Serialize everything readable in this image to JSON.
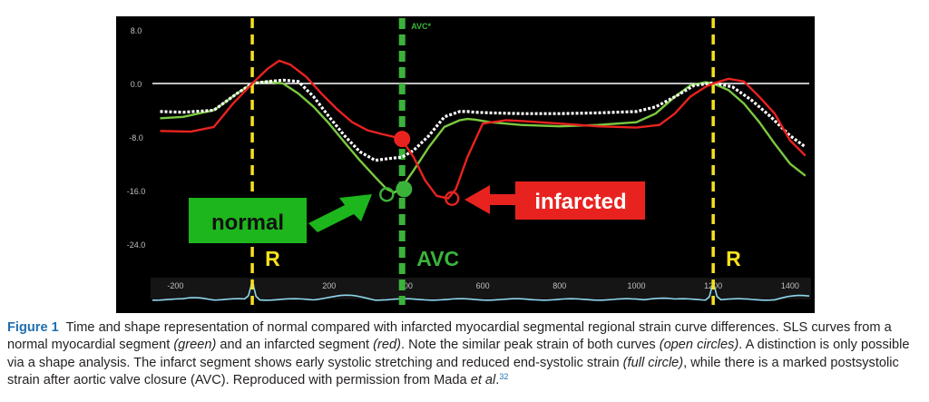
{
  "chart_data": {
    "type": "line",
    "y_ticks": [
      "8.0",
      "0.0",
      "-8.0",
      "-16.0",
      "-24.0"
    ],
    "ylim": [
      -28.5,
      9.5
    ],
    "ecg_x_ticks": [
      "-200",
      "0",
      "200",
      "400",
      "600",
      "800",
      "1000",
      "1200",
      "1400"
    ],
    "xlim": [
      -260,
      1450
    ],
    "markers": [
      {
        "label": "R",
        "x": 0,
        "color": "#f5e11e"
      },
      {
        "label": "AVC",
        "x": 390,
        "color": "#3bb33b"
      },
      {
        "label": "R",
        "x": 1200,
        "color": "#f5e11e"
      }
    ],
    "avc_top_label": "AVC*",
    "series": [
      {
        "color": "#7bc940",
        "x": [
          -240,
          -180,
          -100,
          -40,
          0,
          40,
          80,
          120,
          160,
          200,
          240,
          280,
          320,
          350,
          370,
          390,
          420,
          460,
          500,
          540,
          560,
          580,
          620,
          700,
          800,
          900,
          1000,
          1050,
          1100,
          1140,
          1180,
          1200,
          1240,
          1280,
          1320,
          1360,
          1400,
          1440
        ],
        "y": [
          -5.2,
          -5.0,
          -4.0,
          -1.5,
          0.0,
          0.3,
          0.0,
          -1.5,
          -3.5,
          -6.0,
          -8.8,
          -11.5,
          -14.0,
          -15.8,
          -16.3,
          -15.5,
          -13.0,
          -9.5,
          -6.5,
          -5.5,
          -5.3,
          -5.4,
          -5.8,
          -6.2,
          -6.4,
          -6.2,
          -5.8,
          -4.5,
          -2.0,
          -0.3,
          0.2,
          0.0,
          -1.0,
          -3.0,
          -5.8,
          -9.0,
          -12.0,
          -13.8
        ]
      },
      {
        "color": "#ffffff",
        "dashed": true,
        "x": [
          -240,
          -180,
          -100,
          -40,
          0,
          40,
          80,
          120,
          160,
          200,
          240,
          280,
          320,
          360,
          390,
          420,
          460,
          500,
          540,
          560,
          580,
          620,
          700,
          800,
          900,
          1000,
          1050,
          1100,
          1150,
          1200,
          1250,
          1300,
          1350,
          1400,
          1440
        ],
        "y": [
          -4.2,
          -4.3,
          -4.0,
          -1.5,
          0.0,
          0.3,
          0.5,
          0.3,
          -2.0,
          -5.0,
          -7.8,
          -10.2,
          -11.5,
          -11.2,
          -11.0,
          -10.0,
          -7.8,
          -5.0,
          -4.2,
          -4.2,
          -4.3,
          -4.4,
          -4.5,
          -4.5,
          -4.4,
          -4.2,
          -3.5,
          -2.0,
          -0.3,
          0.1,
          -0.5,
          -2.5,
          -5.0,
          -7.8,
          -9.5
        ]
      },
      {
        "color": "#e8231f",
        "x": [
          -240,
          -160,
          -100,
          -50,
          0,
          40,
          70,
          100,
          140,
          180,
          220,
          260,
          300,
          340,
          370,
          390,
          420,
          450,
          480,
          510,
          530,
          560,
          600,
          660,
          700,
          800,
          900,
          1000,
          1060,
          1100,
          1140,
          1180,
          1200,
          1240,
          1280,
          1320,
          1360,
          1400,
          1440
        ],
        "y": [
          -7.1,
          -7.2,
          -6.5,
          -3.0,
          0.0,
          2.2,
          3.4,
          2.8,
          1.0,
          -1.5,
          -3.8,
          -5.8,
          -7.0,
          -7.6,
          -8.0,
          -8.5,
          -11.0,
          -14.5,
          -16.8,
          -17.2,
          -15.8,
          -11.0,
          -6.0,
          -5.5,
          -5.6,
          -6.0,
          -6.4,
          -6.6,
          -6.2,
          -4.5,
          -2.0,
          -0.5,
          0.0,
          0.7,
          0.3,
          -2.0,
          -4.5,
          -8.5,
          -10.8
        ]
      }
    ],
    "points": [
      {
        "x": 390,
        "y": -8.3,
        "color": "#e8231f",
        "filled": true
      },
      {
        "x": 395,
        "y": -15.8,
        "color": "#3bb33b",
        "filled": true
      },
      {
        "x": 350,
        "y": -16.6,
        "color": "#3bb33b",
        "filled": false
      },
      {
        "x": 520,
        "y": -17.2,
        "color": "#e8231f",
        "filled": false
      }
    ],
    "annotations": [
      {
        "text": "normal",
        "color": "#1db61d"
      },
      {
        "text": "infarcted",
        "color": "#e8231f"
      }
    ],
    "colors": {
      "background": "#000000",
      "zero_line": "#ffffff",
      "ecg": "#8fd7ee",
      "tick_text": "#c0c0c0"
    }
  },
  "caption": {
    "label": "Figure 1",
    "text_1": "Time and shape representation of normal compared with infarcted myocardial segmental regional strain curve differences. SLS curves from a normal myocardial segment ",
    "green_word": "(green)",
    "text_2": " and an infarcted segment ",
    "red_word": "(red)",
    "text_3": ". Note the similar peak strain of both curves ",
    "open_circles": "(open circles)",
    "text_4": ". A distinction is only possible via a shape analysis. The infarct segment shows early systolic stretching and reduced end-systolic strain ",
    "full_circle": "(full circle)",
    "text_5": ", while there is a marked postsystolic strain after aortic valve closure (AVC). Reproduced with permission from Mada ",
    "et_al": "et al",
    "text_6": ".",
    "ref": "32"
  }
}
